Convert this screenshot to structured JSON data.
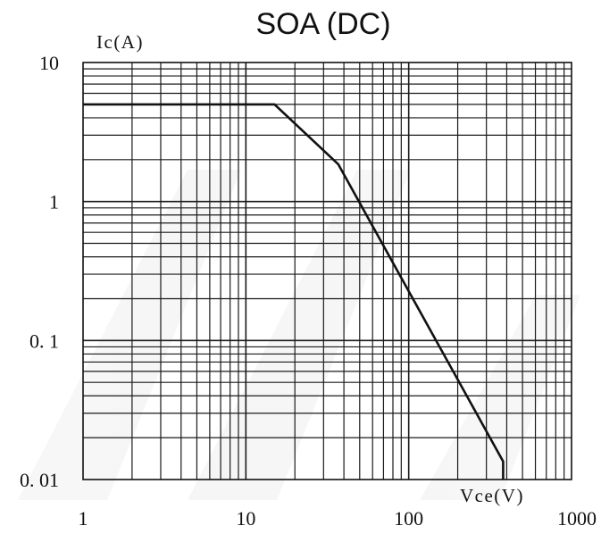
{
  "chart_data": {
    "type": "line",
    "title": "SOA (DC)",
    "xlabel": "Vce(V)",
    "ylabel": "Ic(A)",
    "x_scale": "log",
    "y_scale": "log",
    "xlim": [
      1,
      1000
    ],
    "ylim": [
      0.01,
      10
    ],
    "x_ticks": [
      1,
      10,
      100,
      1000
    ],
    "x_tick_labels": [
      "1",
      "10",
      "100",
      "1000"
    ],
    "y_ticks": [
      10,
      1,
      0.1,
      0.01
    ],
    "y_tick_labels": [
      "10",
      "1",
      "0. 1",
      "0. 01"
    ],
    "grid": true,
    "legend": "none",
    "line_color": "#111111",
    "grid_color": "#1a1a1a",
    "series": [
      {
        "x": [
          1,
          15,
          37,
          380,
          380
        ],
        "y": [
          5,
          5,
          1.85,
          0.0135,
          0.01
        ]
      }
    ]
  }
}
